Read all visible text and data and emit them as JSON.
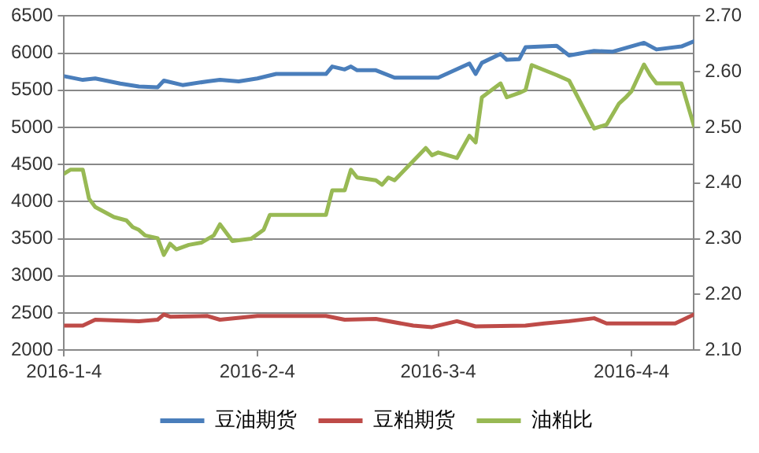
{
  "chart_data": {
    "type": "line",
    "xlim": [
      "2016-01-04",
      "2016-04-14"
    ],
    "xticks": [
      {
        "value": "2016-01-04",
        "label": "2016-1-4"
      },
      {
        "value": "2016-02-04",
        "label": "2016-2-4"
      },
      {
        "value": "2016-03-04",
        "label": "2016-3-4"
      },
      {
        "value": "2016-04-04",
        "label": "2016-4-4"
      }
    ],
    "ylim": [
      2000,
      6500
    ],
    "yticks": [
      2000,
      2500,
      3000,
      3500,
      4000,
      4500,
      5000,
      5500,
      6000,
      6500
    ],
    "y2lim": [
      2.1,
      2.7
    ],
    "y2ticks": [
      {
        "value": 2.1,
        "label": "2.10"
      },
      {
        "value": 2.2,
        "label": "2.20"
      },
      {
        "value": 2.3,
        "label": "2.30"
      },
      {
        "value": 2.4,
        "label": "2.40"
      },
      {
        "value": 2.5,
        "label": "2.50"
      },
      {
        "value": 2.6,
        "label": "2.60"
      },
      {
        "value": 2.7,
        "label": "2.70"
      }
    ],
    "grid": "y",
    "legend": "bottom",
    "marker": "none",
    "line_style": "solid",
    "series": [
      {
        "name": "豆油期货",
        "color": "#4a7ebb",
        "x": [
          "2016-01-04",
          "2016-01-07",
          "2016-01-09",
          "2016-01-13",
          "2016-01-16",
          "2016-01-19",
          "2016-01-20",
          "2016-01-23",
          "2016-01-27",
          "2016-01-29",
          "2016-02-01",
          "2016-02-04",
          "2016-02-07",
          "2016-02-15",
          "2016-02-16",
          "2016-02-18",
          "2016-02-19",
          "2016-02-20",
          "2016-02-23",
          "2016-02-26",
          "2016-03-01",
          "2016-03-04",
          "2016-03-09",
          "2016-03-10",
          "2016-03-11",
          "2016-03-14",
          "2016-03-15",
          "2016-03-17",
          "2016-03-18",
          "2016-03-23",
          "2016-03-25",
          "2016-03-29",
          "2016-04-01",
          "2016-04-06",
          "2016-04-08",
          "2016-04-12",
          "2016-04-14"
        ],
        "values": [
          5690,
          5640,
          5660,
          5590,
          5550,
          5540,
          5630,
          5570,
          5620,
          5640,
          5620,
          5660,
          5720,
          5720,
          5820,
          5780,
          5820,
          5770,
          5770,
          5670,
          5670,
          5670,
          5860,
          5720,
          5870,
          5990,
          5910,
          5920,
          6080,
          6100,
          5970,
          6030,
          6020,
          6140,
          6050,
          6090,
          6160
        ]
      },
      {
        "name": "豆粕期货",
        "color": "#be4b48",
        "x": [
          "2016-01-04",
          "2016-01-07",
          "2016-01-09",
          "2016-01-16",
          "2016-01-19",
          "2016-01-20",
          "2016-01-21",
          "2016-01-27",
          "2016-01-29",
          "2016-02-04",
          "2016-02-15",
          "2016-02-18",
          "2016-02-23",
          "2016-02-29",
          "2016-03-03",
          "2016-03-07",
          "2016-03-10",
          "2016-03-18",
          "2016-03-21",
          "2016-03-25",
          "2016-03-29",
          "2016-03-31",
          "2016-04-11",
          "2016-04-12",
          "2016-04-14"
        ],
        "values": [
          2330,
          2330,
          2410,
          2390,
          2410,
          2480,
          2450,
          2460,
          2410,
          2460,
          2460,
          2410,
          2420,
          2330,
          2310,
          2390,
          2320,
          2330,
          2360,
          2390,
          2430,
          2360,
          2360,
          2400,
          2480
        ]
      },
      {
        "name": "油粕比",
        "color": "#98b954",
        "axis": "y2",
        "x": [
          "2016-01-04",
          "2016-01-05",
          "2016-01-07",
          "2016-01-08",
          "2016-01-09",
          "2016-01-12",
          "2016-01-14",
          "2016-01-15",
          "2016-01-16",
          "2016-01-17",
          "2016-01-19",
          "2016-01-20",
          "2016-01-21",
          "2016-01-22",
          "2016-01-24",
          "2016-01-26",
          "2016-01-28",
          "2016-01-29",
          "2016-01-31",
          "2016-02-03",
          "2016-02-05",
          "2016-02-06",
          "2016-02-15",
          "2016-02-16",
          "2016-02-18",
          "2016-02-19",
          "2016-02-20",
          "2016-02-23",
          "2016-02-24",
          "2016-02-25",
          "2016-02-26",
          "2016-03-02",
          "2016-03-03",
          "2016-03-04",
          "2016-03-07",
          "2016-03-09",
          "2016-03-10",
          "2016-03-11",
          "2016-03-14",
          "2016-03-15",
          "2016-03-17",
          "2016-03-18",
          "2016-03-19",
          "2016-03-23",
          "2016-03-25",
          "2016-03-29",
          "2016-03-31",
          "2016-04-02",
          "2016-04-03",
          "2016-04-04",
          "2016-04-06",
          "2016-04-07",
          "2016-04-08",
          "2016-04-12",
          "2016-04-14"
        ],
        "values": [
          2.417,
          2.424,
          2.424,
          2.372,
          2.357,
          2.339,
          2.333,
          2.321,
          2.316,
          2.306,
          2.301,
          2.271,
          2.291,
          2.281,
          2.289,
          2.293,
          2.306,
          2.326,
          2.296,
          2.3,
          2.316,
          2.343,
          2.343,
          2.387,
          2.387,
          2.424,
          2.41,
          2.405,
          2.397,
          2.41,
          2.405,
          2.463,
          2.45,
          2.455,
          2.445,
          2.485,
          2.473,
          2.554,
          2.579,
          2.554,
          2.562,
          2.567,
          2.612,
          2.594,
          2.584,
          2.498,
          2.505,
          2.543,
          2.553,
          2.565,
          2.613,
          2.594,
          2.579,
          2.579,
          2.503
        ]
      }
    ]
  }
}
